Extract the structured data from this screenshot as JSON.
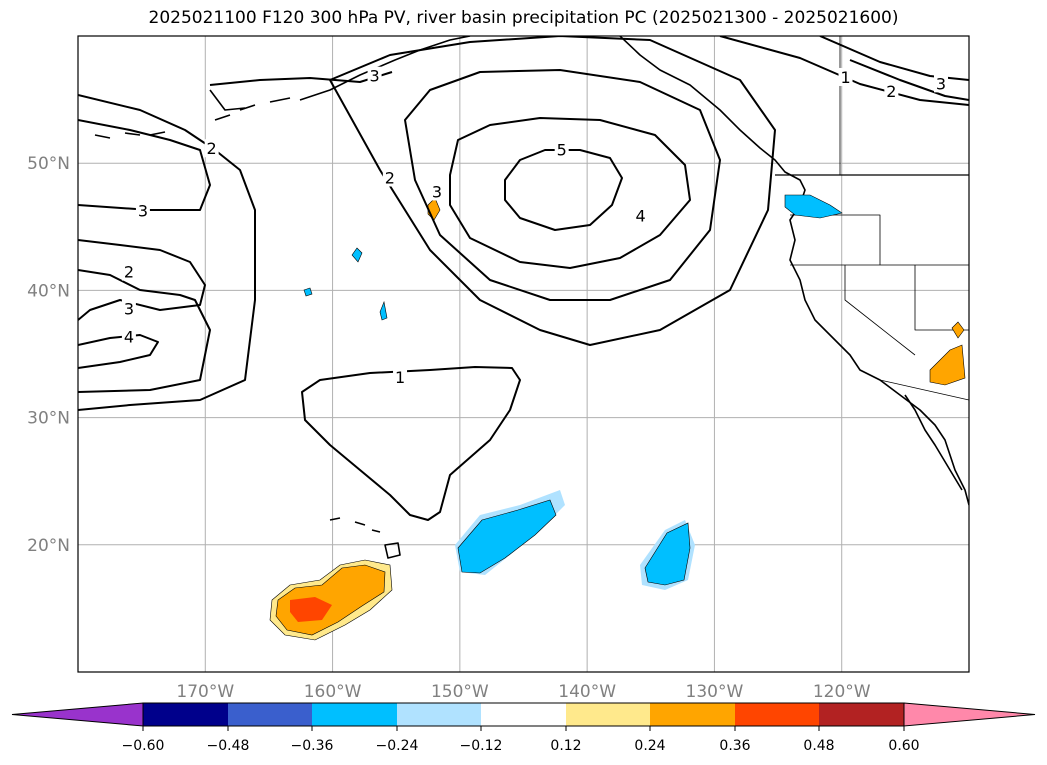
{
  "title": "2025021100 F120 300 hPa PV, river basin precipitation PC (2025021300 - 2025021600)",
  "map": {
    "lon_range": [
      -180,
      -110
    ],
    "lat_range": [
      10,
      60
    ],
    "lat_ticks": [
      {
        "value": 20,
        "label": "20°N"
      },
      {
        "value": 30,
        "label": "30°N"
      },
      {
        "value": 40,
        "label": "40°N"
      },
      {
        "value": 50,
        "label": "50°N"
      }
    ],
    "lon_ticks": [
      {
        "value": -170,
        "label": "170°W"
      },
      {
        "value": -160,
        "label": "160°W"
      },
      {
        "value": -150,
        "label": "150°W"
      },
      {
        "value": -140,
        "label": "140°W"
      },
      {
        "value": -130,
        "label": "130°W"
      },
      {
        "value": -120,
        "label": "120°W"
      }
    ],
    "pv_contour_labels": [
      {
        "text": "5",
        "lon": -142.0,
        "lat": 51.0
      },
      {
        "text": "4",
        "lon": -135.8,
        "lat": 45.8
      },
      {
        "text": "3",
        "lon": -151.8,
        "lat": 47.7
      },
      {
        "text": "2",
        "lon": -155.5,
        "lat": 48.8
      },
      {
        "text": "3",
        "lon": -156.7,
        "lat": 56.8
      },
      {
        "text": "2",
        "lon": -169.5,
        "lat": 51.1
      },
      {
        "text": "3",
        "lon": -174.9,
        "lat": 46.2
      },
      {
        "text": "2",
        "lon": -176.0,
        "lat": 41.4
      },
      {
        "text": "3",
        "lon": -176.0,
        "lat": 38.5
      },
      {
        "text": "4",
        "lon": -176.0,
        "lat": 36.3
      },
      {
        "text": "1",
        "lon": -154.7,
        "lat": 33.1
      },
      {
        "text": "1",
        "lon": -119.7,
        "lat": 56.7
      },
      {
        "text": "2",
        "lon": -116.1,
        "lat": 55.6
      },
      {
        "text": "3",
        "lon": -112.2,
        "lat": 56.2
      }
    ]
  },
  "colorbar": {
    "ticks": [
      "−0.60",
      "−0.48",
      "−0.36",
      "−0.24",
      "−0.12",
      "0.12",
      "0.24",
      "0.36",
      "0.48",
      "0.60"
    ],
    "colors": [
      "#9933cc",
      "#00008b",
      "#3a5fcd",
      "#00bfff",
      "#b0e2ff",
      "#ffffff",
      "#ffe98c",
      "#ffa500",
      "#ff4500",
      "#b22222",
      "#ff88aa",
      "#ff88aa"
    ],
    "extend": "both"
  }
}
